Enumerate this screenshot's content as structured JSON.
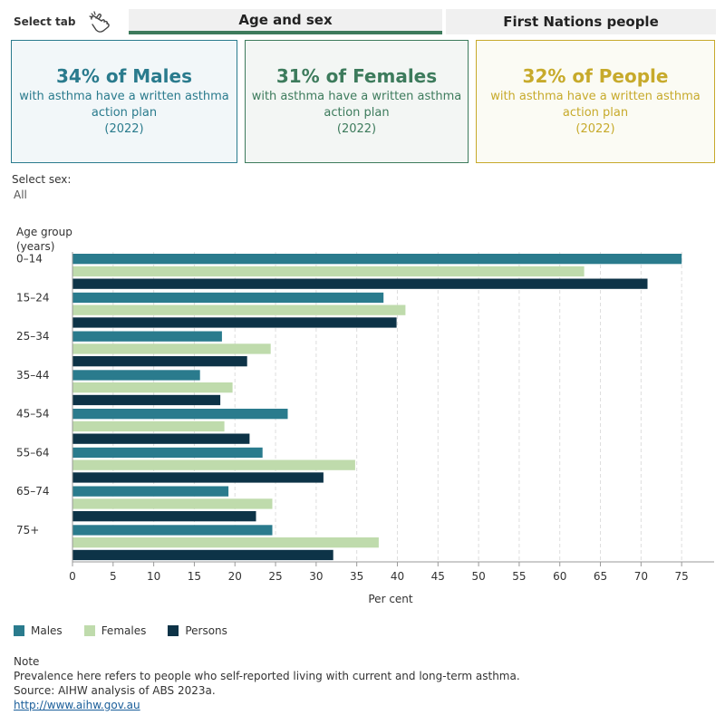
{
  "tabs": {
    "select_label": "Select tab",
    "items": [
      {
        "label": "Age and sex",
        "selected": true
      },
      {
        "label": "First Nations people",
        "selected": false
      }
    ]
  },
  "cards": [
    {
      "headline": "34% of Males",
      "text": "with asthma have a written asthma action plan",
      "year": "(2022)",
      "color": "#2a7b8d"
    },
    {
      "headline": "31% of Females",
      "text": "with asthma have a written asthma action plan",
      "year": "(2022)",
      "color": "#3d7b5c"
    },
    {
      "headline": "32% of People",
      "text": "with asthma have a written asthma action plan",
      "year": "(2022)",
      "color": "#c7aa2b"
    }
  ],
  "filter": {
    "label": "Select sex:",
    "value": "All"
  },
  "colors": {
    "Males": "#2a7b8d",
    "Females": "#bfdbac",
    "Persons": "#0d3347"
  },
  "chart_data": {
    "type": "bar",
    "orientation": "horizontal",
    "title": "",
    "ylabel_line1": "Age group",
    "ylabel_line2": "(years)",
    "xlabel": "Per cent",
    "categories": [
      "0–14",
      "15–24",
      "25–34",
      "35–44",
      "45–54",
      "55–64",
      "65–74",
      "75+"
    ],
    "xlim": [
      0,
      79
    ],
    "xticks": [
      0,
      5,
      10,
      15,
      20,
      25,
      30,
      35,
      40,
      45,
      50,
      55,
      60,
      65,
      70,
      75
    ],
    "grid": true,
    "series": [
      {
        "name": "Males",
        "color": "#2a7b8d",
        "values": [
          75.0,
          38.3,
          18.4,
          15.7,
          26.5,
          23.4,
          19.2,
          24.6
        ]
      },
      {
        "name": "Females",
        "color": "#bfdbac",
        "values": [
          63.0,
          41.0,
          24.4,
          19.7,
          18.7,
          34.8,
          24.6,
          37.7
        ]
      },
      {
        "name": "Persons",
        "color": "#0d3347",
        "values": [
          70.8,
          39.9,
          21.5,
          18.2,
          21.8,
          30.9,
          22.6,
          32.1
        ]
      }
    ]
  },
  "legend": [
    {
      "label": "Males",
      "color": "#2a7b8d"
    },
    {
      "label": "Females",
      "color": "#bfdbac"
    },
    {
      "label": "Persons",
      "color": "#0d3347"
    }
  ],
  "footer": {
    "note_title": "Note",
    "note_text": "Prevalence here refers to people who self-reported living with current and long-term asthma.",
    "source": "Source: AIHW analysis of ABS 2023a.",
    "link": "http://www.aihw.gov.au"
  }
}
